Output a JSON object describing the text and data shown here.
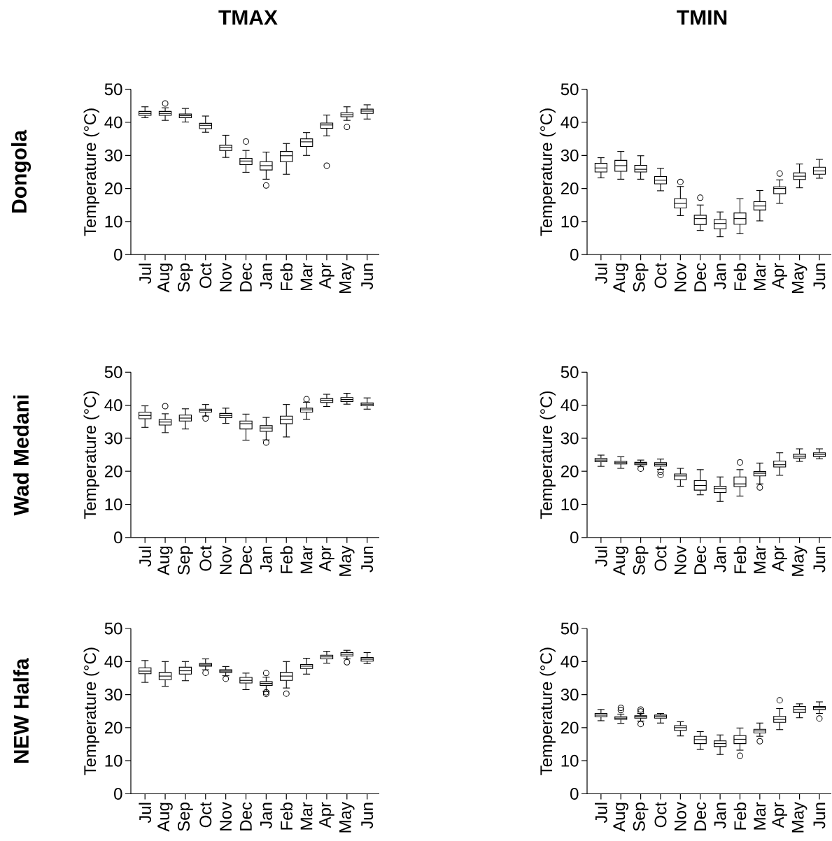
{
  "chart_data": [
    {
      "type": "box",
      "title": "TMAX",
      "annotations": [
        "Dongola"
      ],
      "ylabel": "Temperature (°C)",
      "ylim": [
        0,
        50
      ],
      "yticks": [
        0,
        10,
        20,
        30,
        40,
        50
      ],
      "categories": [
        "Jul",
        "Aug",
        "Sep",
        "Oct",
        "Nov",
        "Dec",
        "Jan",
        "Feb",
        "Mar",
        "Apr",
        "May",
        "Jun"
      ],
      "boxes": [
        {
          "low": 41.4,
          "q1": 42.1,
          "median": 42.7,
          "q3": 43.3,
          "high": 44.7
        },
        {
          "low": 40.6,
          "q1": 42.1,
          "median": 42.7,
          "q3": 43.3,
          "high": 44.4,
          "outliers": [
            45.7
          ]
        },
        {
          "low": 40.1,
          "q1": 41.4,
          "median": 42.0,
          "q3": 42.5,
          "high": 44.2
        },
        {
          "low": 37.0,
          "q1": 38.1,
          "median": 39.1,
          "q3": 39.7,
          "high": 41.9
        },
        {
          "low": 29.4,
          "q1": 31.5,
          "median": 32.4,
          "q3": 33.1,
          "high": 36.1
        },
        {
          "low": 24.9,
          "q1": 27.2,
          "median": 28.3,
          "q3": 29.1,
          "high": 31.5,
          "outliers": [
            34.2
          ]
        },
        {
          "low": 22.8,
          "q1": 25.6,
          "median": 26.9,
          "q3": 28.1,
          "high": 31.0,
          "outliers": [
            20.9
          ]
        },
        {
          "low": 24.3,
          "q1": 28.1,
          "median": 29.9,
          "q3": 31.2,
          "high": 33.6
        },
        {
          "low": 30.0,
          "q1": 32.7,
          "median": 34.1,
          "q3": 35.0,
          "high": 36.9
        },
        {
          "low": 35.9,
          "q1": 38.2,
          "median": 39.2,
          "q3": 39.8,
          "high": 42.2,
          "outliers": [
            26.9
          ]
        },
        {
          "low": 40.6,
          "q1": 41.7,
          "median": 42.3,
          "q3": 42.9,
          "high": 44.7,
          "outliers": [
            38.6
          ]
        },
        {
          "low": 41.0,
          "q1": 42.7,
          "median": 43.4,
          "q3": 44.0,
          "high": 45.3
        }
      ]
    },
    {
      "type": "box",
      "title": "TMIN",
      "ylabel": "Temperature (°C)",
      "ylim": [
        0,
        50
      ],
      "yticks": [
        0,
        10,
        20,
        30,
        40,
        50
      ],
      "categories": [
        "Jul",
        "Aug",
        "Sep",
        "Oct",
        "Nov",
        "Dec",
        "Jan",
        "Feb",
        "Mar",
        "Apr",
        "May",
        "Jun"
      ],
      "boxes": [
        {
          "low": 23.2,
          "q1": 25.0,
          "median": 26.2,
          "q3": 27.6,
          "high": 29.3
        },
        {
          "low": 22.8,
          "q1": 25.2,
          "median": 26.9,
          "q3": 28.5,
          "high": 31.2
        },
        {
          "low": 22.8,
          "q1": 25.0,
          "median": 25.8,
          "q3": 27.0,
          "high": 29.9
        },
        {
          "low": 19.3,
          "q1": 21.4,
          "median": 22.5,
          "q3": 23.6,
          "high": 26.1
        },
        {
          "low": 11.8,
          "q1": 14.1,
          "median": 15.5,
          "q3": 16.9,
          "high": 20.6,
          "outliers": [
            22.0
          ]
        },
        {
          "low": 7.3,
          "q1": 9.1,
          "median": 10.9,
          "q3": 11.9,
          "high": 15.0,
          "outliers": [
            17.2
          ]
        },
        {
          "low": 5.4,
          "q1": 7.8,
          "median": 9.4,
          "q3": 10.6,
          "high": 12.9
        },
        {
          "low": 6.3,
          "q1": 9.2,
          "median": 10.9,
          "q3": 12.6,
          "high": 16.9
        },
        {
          "low": 10.2,
          "q1": 13.5,
          "median": 14.7,
          "q3": 16.0,
          "high": 19.4
        },
        {
          "low": 15.5,
          "q1": 18.4,
          "median": 20.0,
          "q3": 20.5,
          "high": 22.6,
          "outliers": [
            24.5
          ]
        },
        {
          "low": 20.2,
          "q1": 22.7,
          "median": 23.7,
          "q3": 24.7,
          "high": 27.4
        },
        {
          "low": 23.1,
          "q1": 24.3,
          "median": 25.3,
          "q3": 26.4,
          "high": 28.8
        }
      ]
    },
    {
      "type": "box",
      "annotations": [
        "Wad Medani"
      ],
      "ylabel": "Temperature (°C)",
      "ylim": [
        0,
        50
      ],
      "yticks": [
        0,
        10,
        20,
        30,
        40,
        50
      ],
      "categories": [
        "Jul",
        "Aug",
        "Sep",
        "Oct",
        "Nov",
        "Dec",
        "Jan",
        "Feb",
        "Mar",
        "Apr",
        "May",
        "Jun"
      ],
      "boxes": [
        {
          "low": 33.3,
          "q1": 35.9,
          "median": 36.9,
          "q3": 37.9,
          "high": 39.8
        },
        {
          "low": 31.7,
          "q1": 34.0,
          "median": 34.9,
          "q3": 35.7,
          "high": 37.4,
          "outliers": [
            39.7
          ]
        },
        {
          "low": 32.8,
          "q1": 35.2,
          "median": 36.1,
          "q3": 37.0,
          "high": 38.9
        },
        {
          "low": 36.7,
          "q1": 37.9,
          "median": 38.4,
          "q3": 38.8,
          "high": 40.2,
          "outliers": [
            36.0
          ]
        },
        {
          "low": 34.5,
          "q1": 36.2,
          "median": 36.9,
          "q3": 37.5,
          "high": 39.1
        },
        {
          "low": 29.4,
          "q1": 32.8,
          "median": 34.4,
          "q3": 35.2,
          "high": 37.3
        },
        {
          "low": 29.5,
          "q1": 32.1,
          "median": 33.1,
          "q3": 33.8,
          "high": 36.3,
          "outliers": [
            28.7
          ]
        },
        {
          "low": 30.4,
          "q1": 34.4,
          "median": 35.7,
          "q3": 36.7,
          "high": 40.2
        },
        {
          "low": 35.7,
          "q1": 37.9,
          "median": 38.6,
          "q3": 39.1,
          "high": 40.9,
          "outliers": [
            41.8
          ]
        },
        {
          "low": 39.6,
          "q1": 40.8,
          "median": 41.5,
          "q3": 42.0,
          "high": 43.3
        },
        {
          "low": 40.3,
          "q1": 41.1,
          "median": 41.7,
          "q3": 42.3,
          "high": 43.6
        },
        {
          "low": 38.8,
          "q1": 39.8,
          "median": 40.3,
          "q3": 40.7,
          "high": 42.2
        }
      ]
    },
    {
      "type": "box",
      "ylabel": "Temperature (°C)",
      "ylim": [
        0,
        50
      ],
      "yticks": [
        0,
        10,
        20,
        30,
        40,
        50
      ],
      "categories": [
        "Jul",
        "Aug",
        "Sep",
        "Oct",
        "Nov",
        "Dec",
        "Jan",
        "Feb",
        "Mar",
        "Apr",
        "May",
        "Jun"
      ],
      "boxes": [
        {
          "low": 21.5,
          "q1": 22.9,
          "median": 23.4,
          "q3": 23.9,
          "high": 24.9
        },
        {
          "low": 20.9,
          "q1": 22.2,
          "median": 22.6,
          "q3": 23.0,
          "high": 24.4
        },
        {
          "low": 21.5,
          "q1": 22.0,
          "median": 22.4,
          "q3": 22.7,
          "high": 23.4,
          "outliers": [
            20.8
          ]
        },
        {
          "low": 20.6,
          "q1": 21.6,
          "median": 22.1,
          "q3": 22.6,
          "high": 23.7,
          "outliers": [
            19.9,
            18.9
          ]
        },
        {
          "low": 15.5,
          "q1": 17.5,
          "median": 18.6,
          "q3": 19.2,
          "high": 20.9
        },
        {
          "low": 12.9,
          "q1": 14.3,
          "median": 15.7,
          "q3": 17.2,
          "high": 20.5
        },
        {
          "low": 10.9,
          "q1": 13.6,
          "median": 14.8,
          "q3": 15.5,
          "high": 18.3
        },
        {
          "low": 12.5,
          "q1": 15.4,
          "median": 16.2,
          "q3": 18.3,
          "high": 20.5,
          "outliers": [
            22.7
          ]
        },
        {
          "low": 16.2,
          "q1": 18.6,
          "median": 19.4,
          "q3": 19.9,
          "high": 22.5,
          "outliers": [
            15.1
          ]
        },
        {
          "low": 18.8,
          "q1": 21.3,
          "median": 22.0,
          "q3": 23.1,
          "high": 25.6
        },
        {
          "low": 23.0,
          "q1": 24.0,
          "median": 24.6,
          "q3": 25.2,
          "high": 26.8
        },
        {
          "low": 23.8,
          "q1": 24.5,
          "median": 25.1,
          "q3": 25.6,
          "high": 26.8
        }
      ]
    },
    {
      "type": "box",
      "annotations": [
        "NEW Halfa"
      ],
      "ylabel": "Temperature (°C)",
      "ylim": [
        0,
        50
      ],
      "yticks": [
        0,
        10,
        20,
        30,
        40,
        50
      ],
      "categories": [
        "Jul",
        "Aug",
        "Sep",
        "Oct",
        "Nov",
        "Dec",
        "Jan",
        "Feb",
        "Mar",
        "Apr",
        "May",
        "Jun"
      ],
      "boxes": [
        {
          "low": 33.7,
          "q1": 36.3,
          "median": 37.1,
          "q3": 38.1,
          "high": 40.3
        },
        {
          "low": 32.5,
          "q1": 34.5,
          "median": 35.6,
          "q3": 36.7,
          "high": 40.0
        },
        {
          "low": 34.2,
          "q1": 36.2,
          "median": 37.2,
          "q3": 38.3,
          "high": 40.0
        },
        {
          "low": 37.5,
          "q1": 38.6,
          "median": 39.0,
          "q3": 39.4,
          "high": 40.8,
          "outliers": [
            36.6
          ]
        },
        {
          "low": 35.7,
          "q1": 36.7,
          "median": 37.1,
          "q3": 37.5,
          "high": 38.5,
          "outliers": [
            34.8
          ]
        },
        {
          "low": 31.5,
          "q1": 33.5,
          "median": 34.3,
          "q3": 35.2,
          "high": 36.5
        },
        {
          "low": 31.0,
          "q1": 32.8,
          "median": 33.4,
          "q3": 33.9,
          "high": 35.3,
          "outliers": [
            36.5,
            30.7,
            30.2
          ]
        },
        {
          "low": 32.0,
          "q1": 34.3,
          "median": 35.6,
          "q3": 36.7,
          "high": 40.0,
          "outliers": [
            30.3
          ]
        },
        {
          "low": 36.2,
          "q1": 37.9,
          "median": 38.6,
          "q3": 39.1,
          "high": 41.0
        },
        {
          "low": 39.5,
          "q1": 40.8,
          "median": 41.4,
          "q3": 41.9,
          "high": 43.1
        },
        {
          "low": 40.8,
          "q1": 41.7,
          "median": 42.2,
          "q3": 42.7,
          "high": 43.4,
          "outliers": [
            39.8
          ]
        },
        {
          "low": 39.4,
          "q1": 40.1,
          "median": 40.7,
          "q3": 41.2,
          "high": 42.7
        }
      ]
    },
    {
      "type": "box",
      "ylabel": "Temperature (°C)",
      "ylim": [
        0,
        50
      ],
      "yticks": [
        0,
        10,
        20,
        30,
        40,
        50
      ],
      "categories": [
        "Jul",
        "Aug",
        "Sep",
        "Oct",
        "Nov",
        "Dec",
        "Jan",
        "Feb",
        "Mar",
        "Apr",
        "May",
        "Jun"
      ],
      "boxes": [
        {
          "low": 22.1,
          "q1": 23.3,
          "median": 23.8,
          "q3": 24.3,
          "high": 25.5
        },
        {
          "low": 21.3,
          "q1": 22.5,
          "median": 22.9,
          "q3": 23.3,
          "high": 24.1,
          "outliers": [
            26.0,
            25.3
          ]
        },
        {
          "low": 22.0,
          "q1": 22.9,
          "median": 23.3,
          "q3": 23.6,
          "high": 24.3,
          "outliers": [
            25.5,
            24.9,
            21.1
          ]
        },
        {
          "low": 21.4,
          "q1": 22.9,
          "median": 23.4,
          "q3": 23.8,
          "high": 24.3
        },
        {
          "low": 17.5,
          "q1": 19.2,
          "median": 20.0,
          "q3": 20.6,
          "high": 21.8
        },
        {
          "low": 13.4,
          "q1": 15.2,
          "median": 16.4,
          "q3": 17.4,
          "high": 18.8
        },
        {
          "low": 11.9,
          "q1": 14.3,
          "median": 15.2,
          "q3": 16.0,
          "high": 17.8
        },
        {
          "low": 13.2,
          "q1": 15.2,
          "median": 16.5,
          "q3": 17.6,
          "high": 19.9,
          "outliers": [
            11.5
          ]
        },
        {
          "low": 17.4,
          "q1": 18.4,
          "median": 19.0,
          "q3": 19.5,
          "high": 21.4,
          "outliers": [
            15.9
          ]
        },
        {
          "low": 19.4,
          "q1": 21.6,
          "median": 22.5,
          "q3": 23.4,
          "high": 25.8,
          "outliers": [
            28.3
          ]
        },
        {
          "low": 23.0,
          "q1": 24.6,
          "median": 25.5,
          "q3": 26.4,
          "high": 27.2
        },
        {
          "low": 24.3,
          "q1": 25.5,
          "median": 26.0,
          "q3": 26.4,
          "high": 27.8,
          "outliers": [
            22.8
          ]
        }
      ]
    }
  ]
}
